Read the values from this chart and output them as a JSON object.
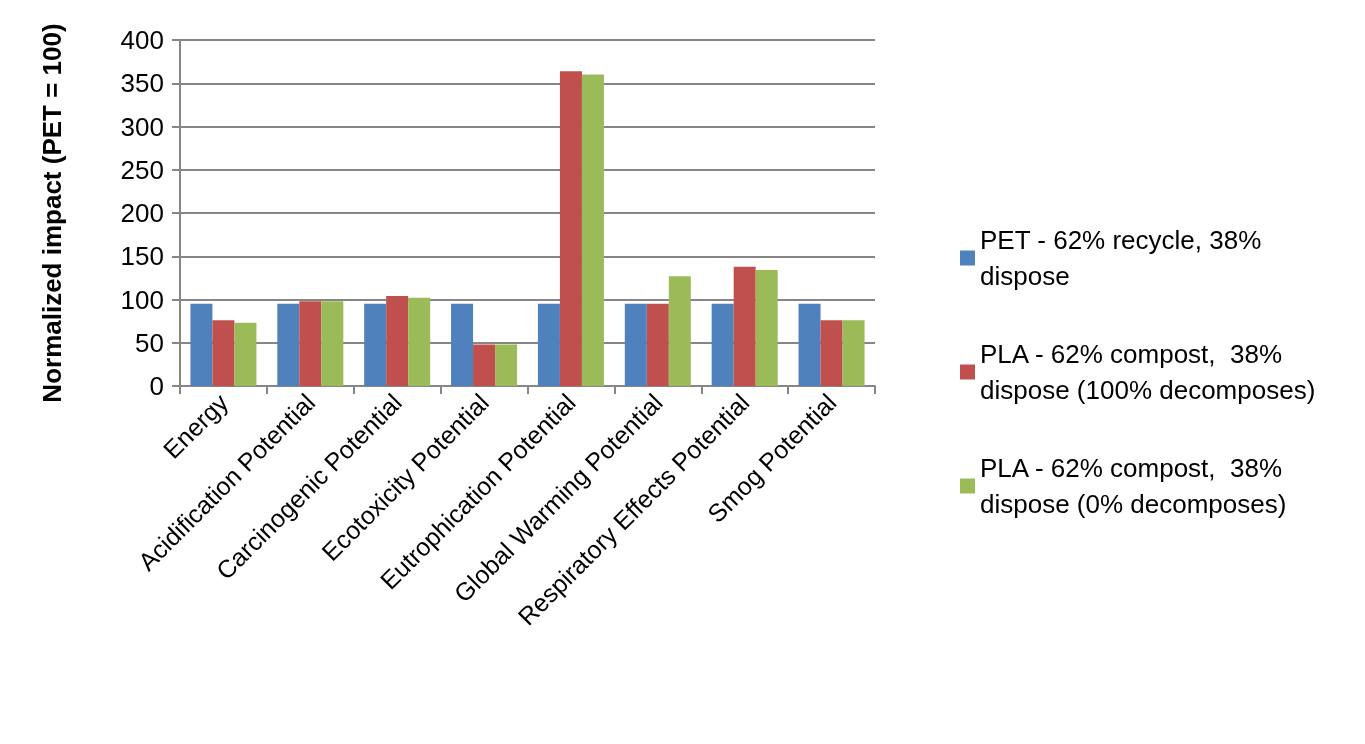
{
  "chart_data": {
    "type": "bar",
    "ylabel": "Normalized impact (PET = 100)",
    "categories": [
      "Energy",
      "Acidification Potential",
      "Carcinogenic Potential",
      "Ecotoxicity Potential",
      "Eutrophication Potential",
      "Global Warming Potential",
      "Respiratory Effects Potential",
      "Smog Potential"
    ],
    "series": [
      {
        "name": "PET - 62% recycle, 38% dispose",
        "color": "#4f81bd",
        "values": [
          95,
          95,
          95,
          95,
          95,
          95,
          95,
          95
        ]
      },
      {
        "name": "PLA - 62% compost,  38% dispose (100% decomposes)",
        "color": "#c0504d",
        "values": [
          76,
          98,
          104,
          48,
          364,
          95,
          138,
          76
        ]
      },
      {
        "name": "PLA - 62% compost,  38% dispose (0% decomposes)",
        "color": "#9bbb59",
        "values": [
          73,
          98,
          102,
          48,
          360,
          127,
          134,
          76
        ]
      }
    ],
    "ylim": [
      0,
      400
    ],
    "yticks": [
      0,
      50,
      100,
      150,
      200,
      250,
      300,
      350,
      400
    ],
    "grid": "y",
    "legend": "right"
  }
}
